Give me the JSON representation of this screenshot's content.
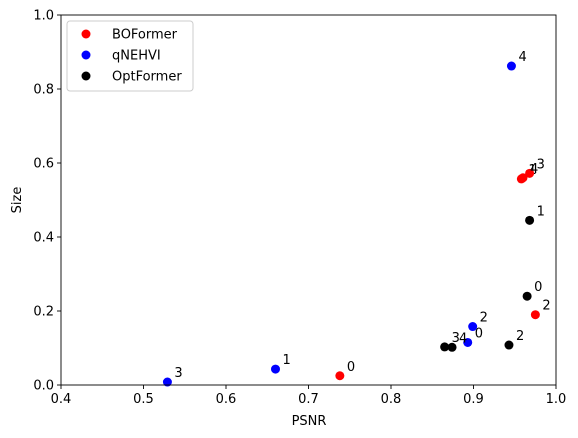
{
  "chart_data": {
    "type": "scatter",
    "title": "",
    "xlabel": "PSNR",
    "ylabel": "Size",
    "xlim": [
      0.4,
      1.0
    ],
    "ylim": [
      0.0,
      1.0
    ],
    "xticks": [
      "0.4",
      "0.5",
      "0.6",
      "0.7",
      "0.8",
      "0.9",
      "1.0"
    ],
    "yticks": [
      "0.0",
      "0.2",
      "0.4",
      "0.6",
      "0.8",
      "1.0"
    ],
    "grid": false,
    "legend_position": "top-left",
    "series": [
      {
        "name": "BOFormer",
        "color": "#ff0000",
        "points": [
          {
            "x": 0.738,
            "y": 0.025,
            "label": "0"
          },
          {
            "x": 0.958,
            "y": 0.557,
            "label": "1"
          },
          {
            "x": 0.975,
            "y": 0.19,
            "label": "2"
          },
          {
            "x": 0.968,
            "y": 0.572,
            "label": "3"
          },
          {
            "x": 0.96,
            "y": 0.56,
            "label": "4"
          }
        ]
      },
      {
        "name": "qNEHVI",
        "color": "#0000ff",
        "points": [
          {
            "x": 0.893,
            "y": 0.115,
            "label": "0"
          },
          {
            "x": 0.66,
            "y": 0.043,
            "label": "1"
          },
          {
            "x": 0.899,
            "y": 0.158,
            "label": "2"
          },
          {
            "x": 0.529,
            "y": 0.008,
            "label": "3"
          },
          {
            "x": 0.946,
            "y": 0.862,
            "label": "4"
          }
        ]
      },
      {
        "name": "OptFormer",
        "color": "#000000",
        "points": [
          {
            "x": 0.965,
            "y": 0.24,
            "label": "0"
          },
          {
            "x": 0.968,
            "y": 0.445,
            "label": "1"
          },
          {
            "x": 0.943,
            "y": 0.108,
            "label": "2"
          },
          {
            "x": 0.865,
            "y": 0.103,
            "label": "3"
          },
          {
            "x": 0.874,
            "y": 0.102,
            "label": "4"
          }
        ]
      }
    ]
  }
}
